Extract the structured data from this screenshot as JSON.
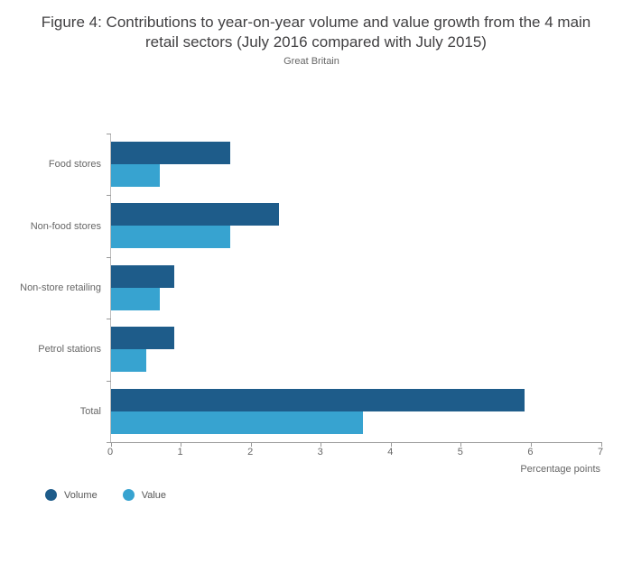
{
  "title": "Figure 4: Contributions to year-on-year volume and value growth from the 4 main retail sectors (July 2016 compared with July 2015)",
  "subtitle": "Great Britain",
  "chart_data": {
    "type": "bar",
    "orientation": "horizontal",
    "title": "Figure 4: Contributions to year-on-year volume and value growth from the 4 main retail sectors (July 2016 compared with July 2015)",
    "subtitle": "Great Britain",
    "categories": [
      "Food stores",
      "Non-food stores",
      "Non-store retailing",
      "Petrol stations",
      "Total"
    ],
    "series": [
      {
        "name": "Volume",
        "color": "#1e5c8a",
        "values": [
          1.7,
          2.4,
          0.9,
          0.9,
          5.9
        ]
      },
      {
        "name": "Value",
        "color": "#37a3d0",
        "values": [
          0.7,
          1.7,
          0.7,
          0.5,
          3.6
        ]
      }
    ],
    "xlabel": "Percentage points",
    "ylabel": "",
    "xlim": [
      0,
      7
    ],
    "xticks": [
      0,
      1,
      2,
      3,
      4,
      5,
      6,
      7
    ],
    "grid": false,
    "legend_position": "bottom-left"
  }
}
